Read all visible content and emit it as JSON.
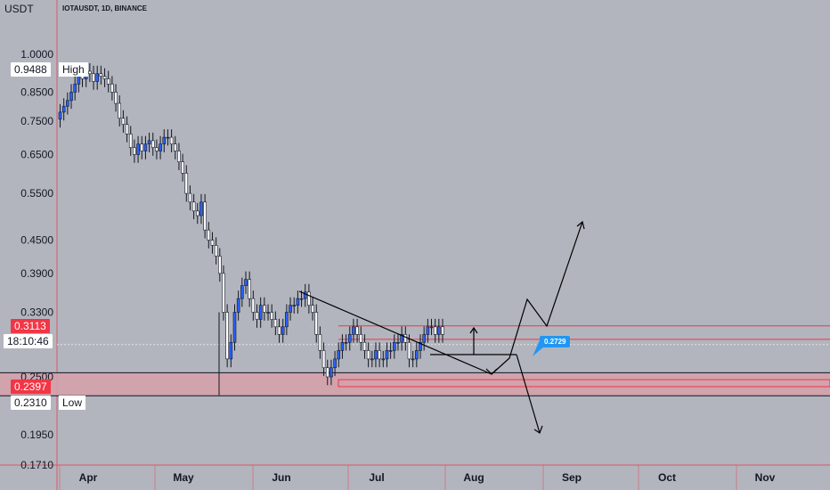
{
  "header": {
    "currency": "USDT",
    "symbol": "IOTAUSDT, 1D, BINANCE"
  },
  "price_axis": {
    "ticks": [
      "1.0000",
      "0.8500",
      "0.7500",
      "0.6500",
      "0.5500",
      "0.4500",
      "0.3900",
      "0.3300",
      "0.2500",
      "0.1950",
      "0.1710"
    ]
  },
  "time_axis": {
    "ticks": [
      "Apr",
      "May",
      "Jun",
      "Jul",
      "Aug",
      "Sep",
      "Oct",
      "Nov"
    ]
  },
  "tags": {
    "high_value": "0.9488",
    "high_label": "High",
    "current_price": "0.3113",
    "countdown": "18:10:46",
    "zone_price": "0.2397",
    "low_value": "0.2310",
    "low_label": "Low"
  },
  "annotation": {
    "price_note": "0.2729"
  },
  "colors": {
    "background": "#b2b5be",
    "up_candle": "#2962ff",
    "down_candle": "#ffffff",
    "zone_fill": "#d3a1ab",
    "zone_line": "#f23645",
    "drawing": "#000000",
    "note": "#2196f3"
  },
  "chart_data": {
    "type": "candlestick",
    "scale": "log",
    "ylim": [
      0.165,
      1.25
    ],
    "y_ticks": [
      1.0,
      0.85,
      0.75,
      0.65,
      0.55,
      0.45,
      0.39,
      0.33,
      0.25,
      0.195,
      0.171
    ],
    "x_ticks": [
      "Apr",
      "May",
      "Jun",
      "Jul",
      "Aug",
      "Sep",
      "Oct",
      "Nov"
    ],
    "high": 0.9488,
    "low": 0.231,
    "current_price": 0.3113,
    "resistance_zone": [
      0.2938,
      0.3113
    ],
    "support_zone": [
      0.2305,
      0.2545
    ],
    "closes": [
      0.78,
      0.8,
      0.82,
      0.85,
      0.88,
      0.91,
      0.9,
      0.93,
      0.92,
      0.89,
      0.92,
      0.91,
      0.9,
      0.88,
      0.85,
      0.81,
      0.76,
      0.74,
      0.71,
      0.67,
      0.65,
      0.68,
      0.66,
      0.68,
      0.69,
      0.67,
      0.66,
      0.68,
      0.7,
      0.7,
      0.68,
      0.66,
      0.63,
      0.6,
      0.55,
      0.53,
      0.51,
      0.5,
      0.53,
      0.47,
      0.45,
      0.44,
      0.42,
      0.39,
      0.33,
      0.27,
      0.29,
      0.33,
      0.35,
      0.37,
      0.38,
      0.35,
      0.33,
      0.32,
      0.34,
      0.33,
      0.33,
      0.32,
      0.31,
      0.3,
      0.31,
      0.33,
      0.34,
      0.34,
      0.35,
      0.35,
      0.36,
      0.34,
      0.33,
      0.3,
      0.28,
      0.26,
      0.25,
      0.26,
      0.27,
      0.28,
      0.29,
      0.29,
      0.3,
      0.31,
      0.3,
      0.29,
      0.28,
      0.27,
      0.27,
      0.28,
      0.27,
      0.27,
      0.28,
      0.28,
      0.29,
      0.29,
      0.3,
      0.29,
      0.27,
      0.27,
      0.28,
      0.29,
      0.3,
      0.31,
      0.31,
      0.3,
      0.31,
      0.3
    ]
  }
}
